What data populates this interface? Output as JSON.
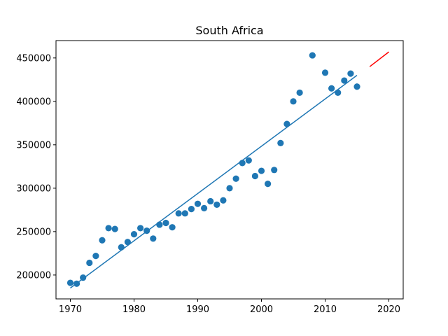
{
  "chart_data": {
    "type": "scatter",
    "title": "South Africa",
    "xlabel": "",
    "ylabel": "",
    "xlim": [
      1967.75,
      2022.25
    ],
    "ylim": [
      172500,
      470000
    ],
    "xticks": [
      1970,
      1980,
      1990,
      2000,
      2010,
      2020
    ],
    "yticks": [
      200000,
      250000,
      300000,
      350000,
      400000,
      450000
    ],
    "grid": false,
    "colors": {
      "points": "#1f77b4",
      "trend": "#1f77b4",
      "forecast": "#ff0000"
    },
    "series": [
      {
        "kind": "scatter",
        "x": [
          1970,
          1971,
          1972,
          1973,
          1974,
          1975,
          1976,
          1977,
          1978,
          1979,
          1980,
          1981,
          1982,
          1983,
          1984,
          1985,
          1986,
          1987,
          1988,
          1989,
          1990,
          1991,
          1992,
          1993,
          1994,
          1995,
          1996,
          1997,
          1998,
          1999,
          2000,
          2001,
          2002,
          2003,
          2004,
          2005,
          2006,
          2008,
          2010,
          2011,
          2012,
          2013,
          2014,
          2015
        ],
        "y": [
          191000,
          190000,
          197000,
          214000,
          222000,
          240000,
          254000,
          253000,
          232000,
          238000,
          247000,
          254000,
          251000,
          242000,
          258000,
          260000,
          255000,
          271000,
          271000,
          276000,
          282000,
          277000,
          285000,
          281000,
          286000,
          300000,
          311000,
          329000,
          332000,
          314000,
          320000,
          305000,
          321000,
          352000,
          374000,
          400000,
          410000,
          453000,
          433000,
          415000,
          410000,
          424000,
          432000,
          417000
        ]
      },
      {
        "kind": "line",
        "x": [
          1970,
          2015
        ],
        "y": [
          185000,
          430000
        ]
      },
      {
        "kind": "line",
        "x": [
          2017,
          2020
        ],
        "y": [
          440000,
          457000
        ]
      }
    ]
  }
}
